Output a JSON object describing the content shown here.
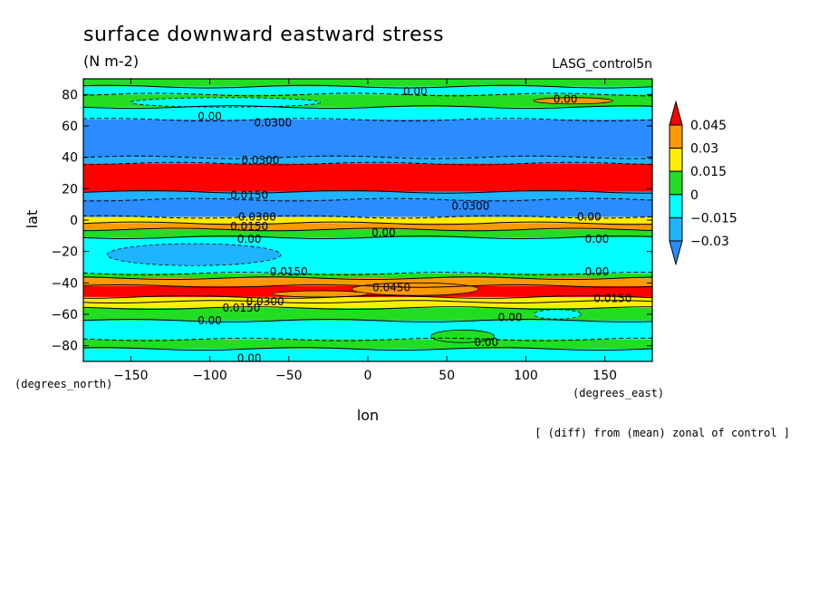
{
  "chart_data": {
    "type": "heatmap",
    "title": "surface downward eastward stress",
    "units": "(N m-2)",
    "dataset": "LASG_control5n",
    "xlabel": "lon",
    "ylabel": "lat",
    "x_units": "(degrees_east)",
    "y_units": "(degrees_north)",
    "note": "[ (diff) from (mean) zonal of control ]",
    "xlim": [
      -180,
      180
    ],
    "ylim": [
      -90,
      90
    ],
    "x_ticks": [
      -150,
      -100,
      -50,
      0,
      50,
      100,
      150
    ],
    "x_tick_labels": [
      "−150",
      "−100",
      "−50",
      "0",
      "50",
      "100",
      "150"
    ],
    "y_ticks": [
      80,
      60,
      40,
      20,
      0,
      -20,
      -40,
      -60,
      -80
    ],
    "y_tick_labels": [
      "80",
      "60",
      "40",
      "20",
      "0",
      "−20",
      "−40",
      "−60",
      "−80"
    ],
    "colorbar": {
      "levels": [
        -0.03,
        -0.015,
        0,
        0.015,
        0.03,
        0.045
      ],
      "level_labels": [
        "−0.03",
        "−0.015",
        "0",
        "0.015",
        "0.03",
        "0.045"
      ],
      "colors": [
        "#2a8cff",
        "#1fb4ff",
        "#00ffff",
        "#22dd22",
        "#ffee00",
        "#ff9900",
        "#ff0000"
      ]
    },
    "zonal_bands": [
      {
        "lat": [
          85,
          90
        ],
        "value": 0.0
      },
      {
        "lat": [
          80,
          85
        ],
        "value": -0.005
      },
      {
        "lat": [
          72,
          80
        ],
        "value": 0.005
      },
      {
        "lat": [
          64,
          72
        ],
        "value": -0.01
      },
      {
        "lat": [
          40,
          64
        ],
        "value": -0.035
      },
      {
        "lat": [
          36,
          40
        ],
        "value": -0.02
      },
      {
        "lat": [
          18,
          36
        ],
        "value": 0.05
      },
      {
        "lat": [
          13,
          18
        ],
        "value": -0.02
      },
      {
        "lat": [
          2,
          13
        ],
        "value": -0.035
      },
      {
        "lat": [
          -2,
          2
        ],
        "value": 0.02
      },
      {
        "lat": [
          -6,
          -2
        ],
        "value": 0.035
      },
      {
        "lat": [
          -11,
          -6
        ],
        "value": 0.005
      },
      {
        "lat": [
          -34,
          -11
        ],
        "value": -0.01
      },
      {
        "lat": [
          -37,
          -34
        ],
        "value": 0.005
      },
      {
        "lat": [
          -42,
          -37
        ],
        "value": 0.035
      },
      {
        "lat": [
          -49,
          -42
        ],
        "value": 0.05
      },
      {
        "lat": [
          -52,
          -49
        ],
        "value": 0.025
      },
      {
        "lat": [
          -56,
          -52
        ],
        "value": 0.02
      },
      {
        "lat": [
          -64,
          -56
        ],
        "value": 0.005
      },
      {
        "lat": [
          -76,
          -64
        ],
        "value": -0.01
      },
      {
        "lat": [
          -82,
          -76
        ],
        "value": 0.005
      },
      {
        "lat": [
          -90,
          -82
        ],
        "value": -0.005
      }
    ],
    "anomalies": [
      {
        "lon": -110,
        "lat": -22,
        "rlon": 55,
        "rlat": 7,
        "value": -0.02
      },
      {
        "lon": 30,
        "lat": -44,
        "rlon": 40,
        "rlat": 4,
        "value": 0.03
      },
      {
        "lon": -90,
        "lat": 75,
        "rlon": 60,
        "rlat": 3,
        "value": -0.005
      },
      {
        "lon": 130,
        "lat": 76,
        "rlon": 25,
        "rlat": 2,
        "value": 0.03
      },
      {
        "lon": -30,
        "lat": -47,
        "rlon": 30,
        "rlat": 2,
        "value": 0.03
      },
      {
        "lon": 120,
        "lat": -60,
        "rlon": 15,
        "rlat": 3,
        "value": -0.005
      },
      {
        "lon": 60,
        "lat": -74,
        "rlon": 20,
        "rlat": 4,
        "value": 0.0
      }
    ],
    "contour_labels": [
      {
        "text": "0.00",
        "lon": 30,
        "lat": 82
      },
      {
        "text": "0.00",
        "lon": 125,
        "lat": 77
      },
      {
        "text": "0.00",
        "lon": -100,
        "lat": 66
      },
      {
        "text": "0.0300",
        "lon": -60,
        "lat": 62
      },
      {
        "text": "0.0300",
        "lon": -68,
        "lat": 38
      },
      {
        "text": "0.0150",
        "lon": -75,
        "lat": 16
      },
      {
        "text": "0.0300",
        "lon": 65,
        "lat": 9
      },
      {
        "text": "0.0300",
        "lon": -70,
        "lat": 2
      },
      {
        "text": "0.00",
        "lon": 140,
        "lat": 2
      },
      {
        "text": "0.0150",
        "lon": -75,
        "lat": -4
      },
      {
        "text": "0.00",
        "lon": 10,
        "lat": -8
      },
      {
        "text": "0.00",
        "lon": -75,
        "lat": -12
      },
      {
        "text": "0.00",
        "lon": 145,
        "lat": -12
      },
      {
        "text": "0.0150",
        "lon": -50,
        "lat": -33
      },
      {
        "text": "0.00",
        "lon": 145,
        "lat": -33
      },
      {
        "text": "0.0450",
        "lon": 15,
        "lat": -43
      },
      {
        "text": "0.0150",
        "lon": 155,
        "lat": -50
      },
      {
        "text": "0.0300",
        "lon": -65,
        "lat": -52
      },
      {
        "text": "0.0150",
        "lon": -80,
        "lat": -56
      },
      {
        "text": "0.00",
        "lon": -100,
        "lat": -64
      },
      {
        "text": "0.00",
        "lon": 90,
        "lat": -62
      },
      {
        "text": "0.00",
        "lon": 75,
        "lat": -78
      },
      {
        "text": "0.00",
        "lon": -75,
        "lat": -88
      }
    ]
  }
}
